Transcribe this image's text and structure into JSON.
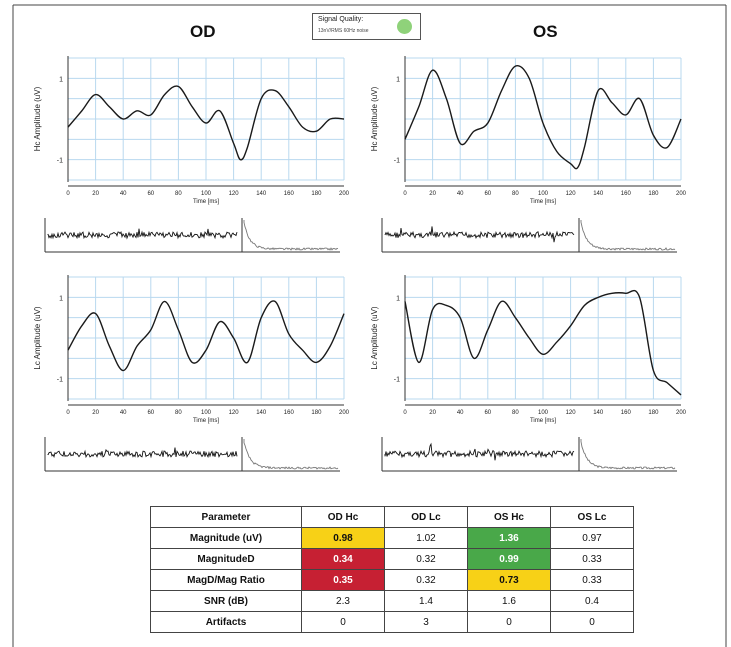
{
  "signal_quality": {
    "label": "Signal Quality:",
    "sublabel": "13nV/RMS 60Hz noise",
    "color": "#8fd27a"
  },
  "eyes": {
    "left": "OD",
    "right": "OS"
  },
  "colors": {
    "grid": "#b8d8ef",
    "trace": "#1a1a1a",
    "yellow": "#f7d117",
    "red": "#c62033",
    "green": "#49a849"
  },
  "plots": {
    "od_hc": {
      "ylabel": "Hc Amplitude (uV)",
      "xlabel": "Time [ms]"
    },
    "os_hc": {
      "ylabel": "Hc Amplitude (uV)",
      "xlabel": "Time [ms]"
    },
    "od_lc": {
      "ylabel": "Lc Amplitude (uV)",
      "xlabel": "Time [ms]"
    },
    "os_lc": {
      "ylabel": "Lc Amplitude (uV)",
      "xlabel": "Time [ms]"
    },
    "y_ticks": [
      "1",
      "-1"
    ],
    "x_ticks": [
      "0",
      "20",
      "40",
      "60",
      "80",
      "100",
      "120",
      "140",
      "160",
      "180",
      "200"
    ]
  },
  "chart_data": [
    {
      "type": "line",
      "name": "OD Hc",
      "x": [
        0,
        10,
        20,
        30,
        40,
        50,
        60,
        70,
        80,
        90,
        100,
        110,
        120,
        125,
        130,
        140,
        150,
        160,
        170,
        180,
        190,
        200
      ],
      "y": [
        -0.2,
        0.2,
        0.6,
        0.3,
        0.0,
        0.2,
        0.1,
        0.6,
        0.8,
        0.3,
        -0.1,
        0.2,
        -0.6,
        -1.0,
        -0.7,
        0.5,
        0.7,
        0.3,
        -0.2,
        -0.3,
        0.0,
        0.0
      ]
    },
    {
      "type": "line",
      "name": "OS Hc",
      "x": [
        0,
        10,
        20,
        30,
        40,
        50,
        60,
        70,
        80,
        90,
        100,
        110,
        120,
        125,
        130,
        140,
        150,
        160,
        170,
        180,
        190,
        200
      ],
      "y": [
        -0.5,
        0.3,
        1.2,
        0.5,
        -0.6,
        -0.3,
        -0.1,
        0.7,
        1.3,
        1.0,
        -0.1,
        -0.8,
        -1.1,
        -1.2,
        -0.7,
        0.7,
        0.4,
        0.1,
        0.5,
        -0.4,
        -0.7,
        0.0
      ]
    },
    {
      "type": "line",
      "name": "OD Lc",
      "x": [
        0,
        10,
        20,
        30,
        40,
        50,
        60,
        70,
        80,
        90,
        100,
        110,
        120,
        130,
        140,
        150,
        160,
        170,
        180,
        190,
        200
      ],
      "y": [
        -0.3,
        0.3,
        0.6,
        -0.2,
        -0.8,
        -0.2,
        0.2,
        0.9,
        0.2,
        -0.6,
        -0.3,
        0.4,
        0.0,
        -0.6,
        0.5,
        0.9,
        0.1,
        -0.3,
        -0.6,
        -0.2,
        0.6
      ]
    },
    {
      "type": "line",
      "name": "OS Lc",
      "x": [
        0,
        10,
        20,
        30,
        40,
        50,
        60,
        70,
        80,
        90,
        100,
        110,
        120,
        130,
        140,
        150,
        160,
        170,
        180,
        190,
        200
      ],
      "y": [
        0.9,
        -0.6,
        0.7,
        0.8,
        0.5,
        -0.5,
        0.2,
        0.9,
        0.5,
        0.0,
        -0.4,
        -0.1,
        0.3,
        0.8,
        1.0,
        1.1,
        1.1,
        1.0,
        -0.8,
        -1.1,
        -1.4
      ]
    }
  ],
  "table": {
    "headers": [
      "Parameter",
      "OD Hc",
      "OD Lc",
      "OS Hc",
      "OS Lc"
    ],
    "rows": [
      {
        "param": "Magnitude (uV)",
        "od_hc": "0.98",
        "od_lc": "1.02",
        "os_hc": "1.36",
        "os_lc": "0.97"
      },
      {
        "param": "MagnitudeD",
        "od_hc": "0.34",
        "od_lc": "0.32",
        "os_hc": "0.99",
        "os_lc": "0.33"
      },
      {
        "param": "MagD/Mag Ratio",
        "od_hc": "0.35",
        "od_lc": "0.32",
        "os_hc": "0.73",
        "os_lc": "0.33"
      },
      {
        "param": "SNR (dB)",
        "od_hc": "2.3",
        "od_lc": "1.4",
        "os_hc": "1.6",
        "os_lc": "0.4"
      },
      {
        "param": "Artifacts",
        "od_hc": "0",
        "od_lc": "3",
        "os_hc": "0",
        "os_lc": "0"
      }
    ],
    "cell_colors": {
      "r0_od_hc": "#f7d117",
      "r0_os_hc": "#49a849",
      "r1_od_hc": "#c62033",
      "r1_os_hc": "#49a849",
      "r2_od_hc": "#c62033",
      "r2_os_hc": "#f7d117"
    }
  }
}
